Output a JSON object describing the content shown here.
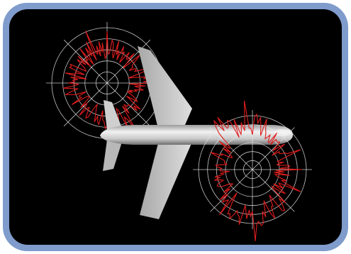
{
  "scene": {
    "subject": "airplane-top-view",
    "elements": [
      "wing",
      "fuselage",
      "tailplane",
      "radiation-pattern-polar-plot"
    ],
    "colors": {
      "frame": "#7f9ccc",
      "background": "#000000",
      "aircraft": "#c8c8c8",
      "grid": "#e6e6e6",
      "pattern": "#e01c1c"
    },
    "polar_plots": [
      {
        "rings": 5,
        "spokes": 8
      },
      {
        "rings": 6,
        "spokes": 8
      }
    ]
  }
}
